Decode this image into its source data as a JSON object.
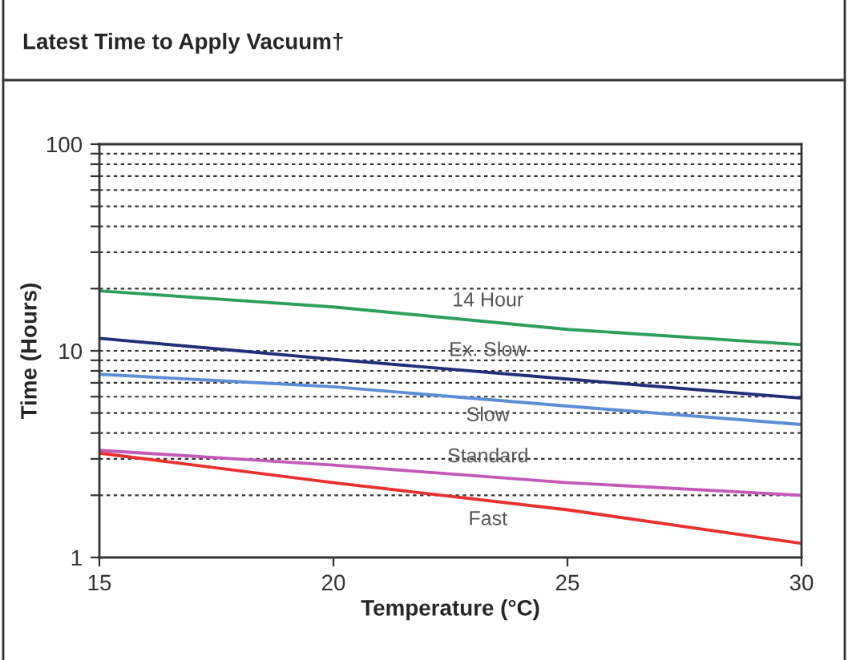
{
  "chart_data": {
    "type": "line",
    "title": "Latest Time to Apply Vacuum†",
    "xlabel": "Temperature (°C)",
    "ylabel": "Time (Hours)",
    "x": [
      15,
      20,
      25,
      30
    ],
    "series": [
      {
        "name": "14 Hour",
        "color": "#2ca05a",
        "values": [
          19.5,
          16.3,
          12.7,
          10.7
        ]
      },
      {
        "name": "Ex. Slow",
        "color": "#1f2f7a",
        "values": [
          11.5,
          9.1,
          7.3,
          5.9
        ]
      },
      {
        "name": "Slow",
        "color": "#5b8ed6",
        "values": [
          7.7,
          6.7,
          5.4,
          4.4
        ]
      },
      {
        "name": "Standard",
        "color": "#c45ab8",
        "values": [
          3.3,
          2.8,
          2.3,
          2.0
        ]
      },
      {
        "name": "Fast",
        "color": "#e8312f",
        "values": [
          3.2,
          2.3,
          1.7,
          1.17
        ]
      }
    ],
    "log": "y",
    "xlim": [
      15,
      30
    ],
    "xticks": [
      15,
      20,
      25,
      30
    ],
    "ylim": [
      1,
      100
    ],
    "yticks": [
      1,
      {
        "value": 2,
        "label": null
      },
      {
        "value": 3,
        "label": null
      },
      {
        "value": 4,
        "label": null
      },
      {
        "value": 5,
        "label": null
      },
      {
        "value": 6,
        "label": null
      },
      {
        "value": 7,
        "label": null
      },
      {
        "value": 8,
        "label": null
      },
      {
        "value": 9,
        "label": null
      },
      10,
      {
        "value": 20,
        "label": null
      },
      {
        "value": 30,
        "label": null
      },
      {
        "value": 40,
        "label": null
      },
      {
        "value": 50,
        "label": null
      },
      {
        "value": 60,
        "label": null
      },
      {
        "value": 70,
        "label": null
      },
      {
        "value": 80,
        "label": null
      },
      {
        "value": 90,
        "label": null
      },
      100
    ],
    "grid": "y",
    "legend": false,
    "marker": "none",
    "line_style": "solid"
  }
}
